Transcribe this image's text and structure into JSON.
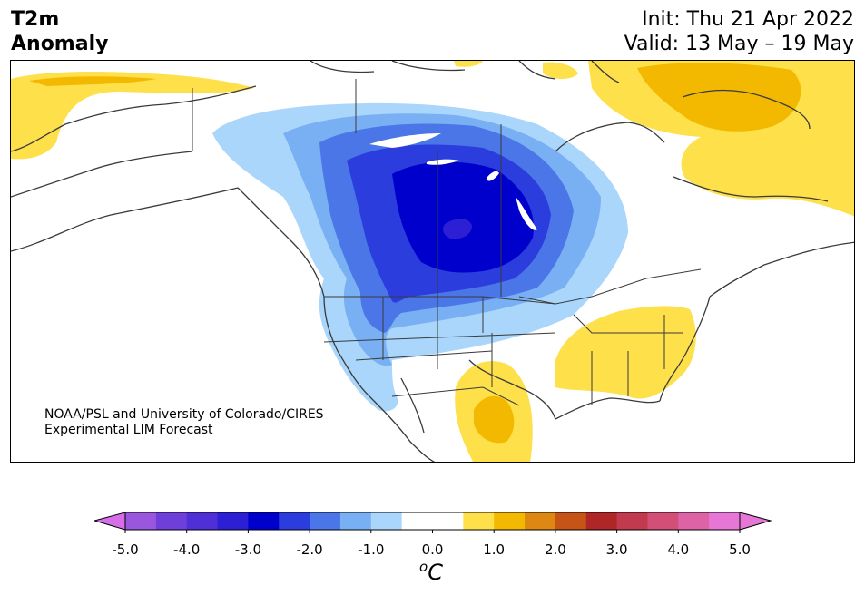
{
  "header": {
    "title_line1": "T2m",
    "title_line2": "Anomaly",
    "init": "Init: Thu 21 Apr 2022",
    "valid": "Valid: 13 May – 19 May"
  },
  "credit": {
    "line1": "NOAA/PSL and University of Colorado/CIRES",
    "line2": "Experimental LIM Forecast"
  },
  "colorbar": {
    "unit_base": "C",
    "unit_sup": "o",
    "ticks": [
      "-5.0",
      "-4.0",
      "-3.0",
      "-2.0",
      "-1.0",
      "0.0",
      "1.0",
      "2.0",
      "3.0",
      "4.0",
      "5.0"
    ],
    "tick_values": [
      -5,
      -4,
      -3,
      -2,
      -1,
      0,
      1,
      2,
      3,
      4,
      5
    ],
    "bins": [
      {
        "from": -5.0,
        "to": -4.5,
        "color": "#9a57dd"
      },
      {
        "from": -4.5,
        "to": -4.0,
        "color": "#6f3fd9"
      },
      {
        "from": -4.0,
        "to": -3.5,
        "color": "#4f2fd6"
      },
      {
        "from": -3.5,
        "to": -3.0,
        "color": "#2d1fd3"
      },
      {
        "from": -3.0,
        "to": -2.5,
        "color": "#0000cd"
      },
      {
        "from": -2.5,
        "to": -2.0,
        "color": "#2b3ddc"
      },
      {
        "from": -2.0,
        "to": -1.5,
        "color": "#4b76e8"
      },
      {
        "from": -1.5,
        "to": -1.0,
        "color": "#79b0f3"
      },
      {
        "from": -1.0,
        "to": -0.5,
        "color": "#aad6fb"
      },
      {
        "from": -0.5,
        "to": 0.5,
        "color": "#ffffff"
      },
      {
        "from": 0.5,
        "to": 1.0,
        "color": "#fde04a"
      },
      {
        "from": 1.0,
        "to": 1.5,
        "color": "#f3b900"
      },
      {
        "from": 1.5,
        "to": 2.0,
        "color": "#dd8813"
      },
      {
        "from": 2.0,
        "to": 2.5,
        "color": "#c55417"
      },
      {
        "from": 2.5,
        "to": 3.0,
        "color": "#ae2626"
      },
      {
        "from": 3.0,
        "to": 3.5,
        "color": "#c13a4e"
      },
      {
        "from": 3.5,
        "to": 4.0,
        "color": "#d24f78"
      },
      {
        "from": 4.0,
        "to": 4.5,
        "color": "#db63a6"
      },
      {
        "from": 4.5,
        "to": 5.0,
        "color": "#e677d6"
      }
    ],
    "extend_low_color": "#d56ee8",
    "extend_high_color": "#e677d6"
  },
  "map_colors": {
    "ocean": "#ffffff",
    "coast": "#3a3a3a",
    "border": "#3a3a3a"
  }
}
